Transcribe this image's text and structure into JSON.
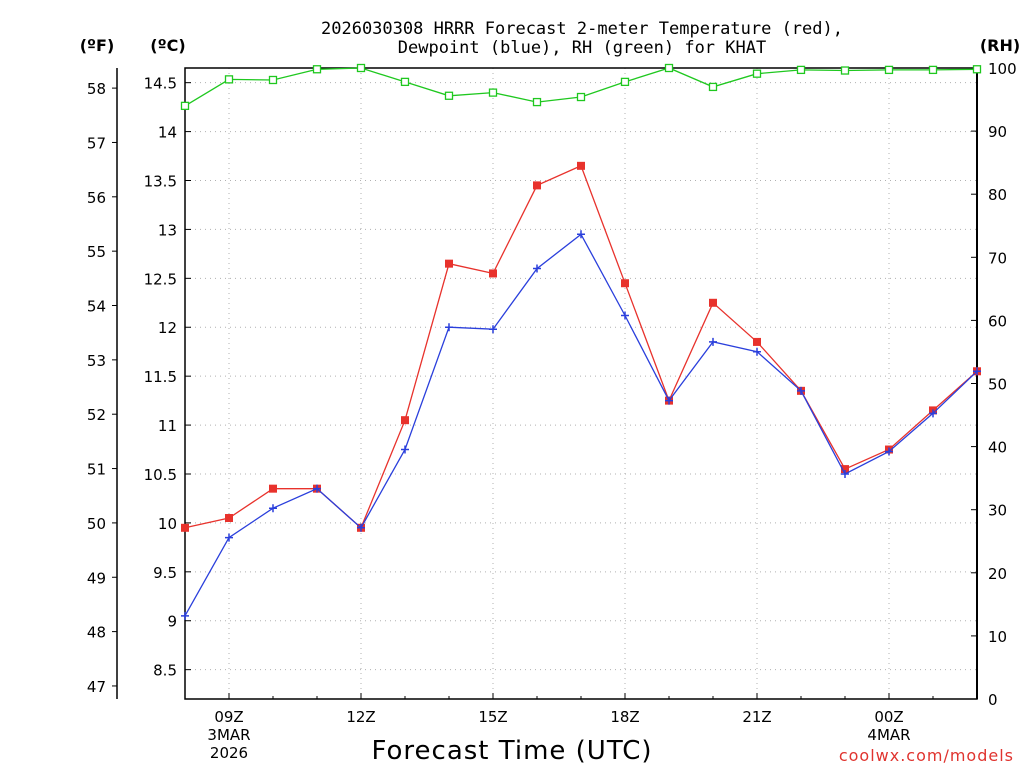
{
  "chart_data": {
    "type": "line",
    "title_line1": "2026030308 HRRR Forecast 2-meter Temperature (red),",
    "title_line2": "Dewpoint (blue), RH (green) for KHAT",
    "xlabel": "Forecast Time (UTC)",
    "credit": "coolwx.com/models",
    "left_outer_unit": "(ºF)",
    "left_inner_unit": "(ºC)",
    "right_unit": "(RH)",
    "x_hours": [
      8,
      9,
      10,
      11,
      12,
      13,
      14,
      15,
      16,
      17,
      18,
      19,
      20,
      21,
      22,
      23,
      24,
      25,
      26
    ],
    "xlim": [
      8,
      26
    ],
    "x_ticks": [
      {
        "hour": 9,
        "label": "09Z",
        "sub1": "3MAR",
        "sub2": "2026"
      },
      {
        "hour": 12,
        "label": "12Z",
        "sub1": "",
        "sub2": ""
      },
      {
        "hour": 15,
        "label": "15Z",
        "sub1": "",
        "sub2": ""
      },
      {
        "hour": 18,
        "label": "18Z",
        "sub1": "",
        "sub2": ""
      },
      {
        "hour": 21,
        "label": "21Z",
        "sub1": "",
        "sub2": ""
      },
      {
        "hour": 24,
        "label": "00Z",
        "sub1": "4MAR",
        "sub2": ""
      }
    ],
    "y_celsius_lim": [
      8.2,
      14.65
    ],
    "y_celsius_ticks": [
      8.5,
      9,
      9.5,
      10,
      10.5,
      11,
      11.5,
      12,
      12.5,
      13,
      13.5,
      14,
      14.5
    ],
    "y_fahrenheit_ticks": [
      47,
      48,
      49,
      50,
      51,
      52,
      53,
      54,
      55,
      56,
      57,
      58
    ],
    "y_rh_lim": [
      0,
      100
    ],
    "y_rh_ticks": [
      0,
      10,
      20,
      30,
      40,
      50,
      60,
      70,
      80,
      90,
      100
    ],
    "series": [
      {
        "name": "Temperature",
        "color": "#e8322c",
        "marker": "filled-square",
        "axis": "celsius",
        "values": [
          9.95,
          10.05,
          10.35,
          10.35,
          9.95,
          11.05,
          12.65,
          12.55,
          13.45,
          13.65,
          12.45,
          11.25,
          12.25,
          11.85,
          11.35,
          10.55,
          10.75,
          11.15,
          11.55
        ]
      },
      {
        "name": "Dewpoint",
        "color": "#2a3fdc",
        "marker": "plus",
        "axis": "celsius",
        "values": [
          9.05,
          9.85,
          10.15,
          10.35,
          9.95,
          10.75,
          12.0,
          11.98,
          12.6,
          12.95,
          12.12,
          11.25,
          11.85,
          11.75,
          11.35,
          10.5,
          10.73,
          11.12,
          11.55
        ]
      },
      {
        "name": "RH",
        "color": "#1fc81f",
        "marker": "open-square",
        "axis": "rh",
        "values": [
          94,
          98.2,
          98.1,
          99.8,
          100,
          97.8,
          95.6,
          96.1,
          94.6,
          95.4,
          97.8,
          100,
          97.0,
          99.1,
          99.7,
          99.6,
          99.7,
          99.7,
          99.8
        ]
      }
    ]
  }
}
